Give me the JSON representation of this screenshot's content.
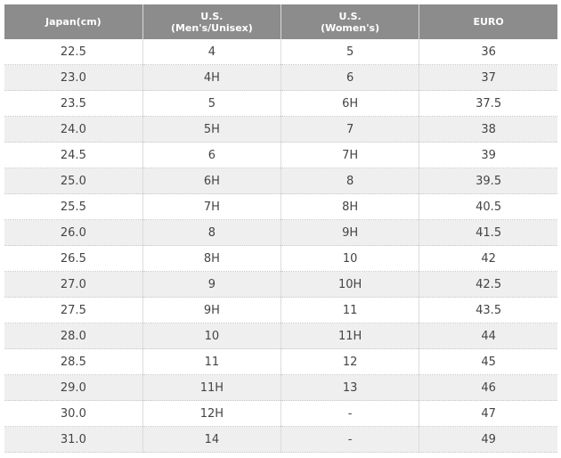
{
  "table": {
    "header": [
      [
        "Japan(cm)"
      ],
      [
        "U.S.",
        "(Men's/Unisex)"
      ],
      [
        "U.S.",
        "(Women's)"
      ],
      [
        "EURO"
      ]
    ],
    "rows": [
      [
        "22.5",
        "4",
        "5",
        "36"
      ],
      [
        "23.0",
        "4H",
        "6",
        "37"
      ],
      [
        "23.5",
        "5",
        "6H",
        "37.5"
      ],
      [
        "24.0",
        "5H",
        "7",
        "38"
      ],
      [
        "24.5",
        "6",
        "7H",
        "39"
      ],
      [
        "25.0",
        "6H",
        "8",
        "39.5"
      ],
      [
        "25.5",
        "7H",
        "8H",
        "40.5"
      ],
      [
        "26.0",
        "8",
        "9H",
        "41.5"
      ],
      [
        "26.5",
        "8H",
        "10",
        "42"
      ],
      [
        "27.0",
        "9",
        "10H",
        "42.5"
      ],
      [
        "27.5",
        "9H",
        "11",
        "43.5"
      ],
      [
        "28.0",
        "10",
        "11H",
        "44"
      ],
      [
        "28.5",
        "11",
        "12",
        "45"
      ],
      [
        "29.0",
        "11H",
        "13",
        "46"
      ],
      [
        "30.0",
        "12H",
        "-",
        "47"
      ],
      [
        "31.0",
        "14",
        "-",
        "49"
      ]
    ]
  }
}
